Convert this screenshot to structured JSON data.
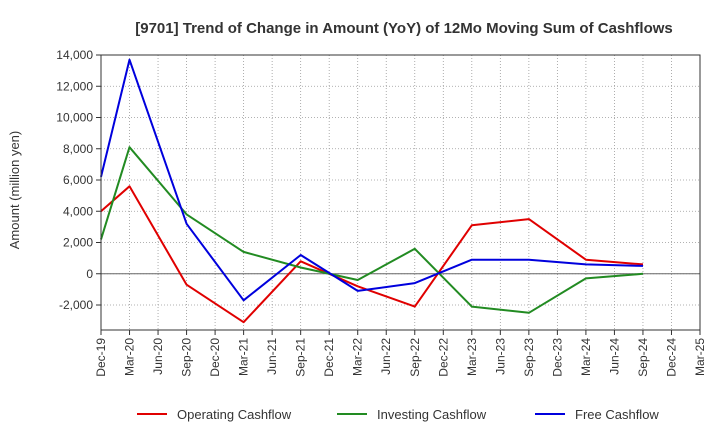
{
  "chart_data": {
    "type": "line",
    "title": "[9701]  Trend of Change in Amount (YoY) of 12Mo Moving Sum of Cashflows",
    "xlabel": "",
    "ylabel": "Amount (million yen)",
    "ylim": [
      -3600,
      14000
    ],
    "yticks": [
      -2000,
      0,
      2000,
      4000,
      6000,
      8000,
      10000,
      12000,
      14000
    ],
    "ytick_labels": [
      "-2,000",
      "0",
      "2,000",
      "4,000",
      "6,000",
      "8,000",
      "10,000",
      "12,000",
      "14,000"
    ],
    "categories": [
      "Dec-19",
      "Mar-20",
      "Jun-20",
      "Sep-20",
      "Dec-20",
      "Mar-21",
      "Jun-21",
      "Sep-21",
      "Dec-21",
      "Mar-22",
      "Jun-22",
      "Sep-22",
      "Dec-22",
      "Mar-23",
      "Jun-23",
      "Sep-23",
      "Dec-23",
      "Mar-24",
      "Jun-24",
      "Sep-24",
      "Dec-24",
      "Mar-25"
    ],
    "grid": true,
    "legend_position": "bottom",
    "series": [
      {
        "name": "Operating Cashflow",
        "color": "#e00000",
        "values": [
          4000,
          5600,
          null,
          -700,
          null,
          -3100,
          null,
          800,
          null,
          -800,
          null,
          -2100,
          null,
          3100,
          null,
          3500,
          null,
          900,
          null,
          600,
          null,
          null
        ]
      },
      {
        "name": "Investing Cashflow",
        "color": "#228b22",
        "values": [
          2200,
          8100,
          null,
          3800,
          null,
          1400,
          null,
          400,
          null,
          -400,
          null,
          1600,
          null,
          -2100,
          null,
          -2500,
          null,
          -300,
          null,
          0,
          null,
          null
        ]
      },
      {
        "name": "Free Cashflow",
        "color": "#0000dd",
        "values": [
          6200,
          13700,
          null,
          3200,
          null,
          -1700,
          null,
          1200,
          null,
          -1100,
          null,
          -600,
          null,
          900,
          null,
          900,
          null,
          600,
          null,
          500,
          null,
          null
        ]
      }
    ]
  }
}
